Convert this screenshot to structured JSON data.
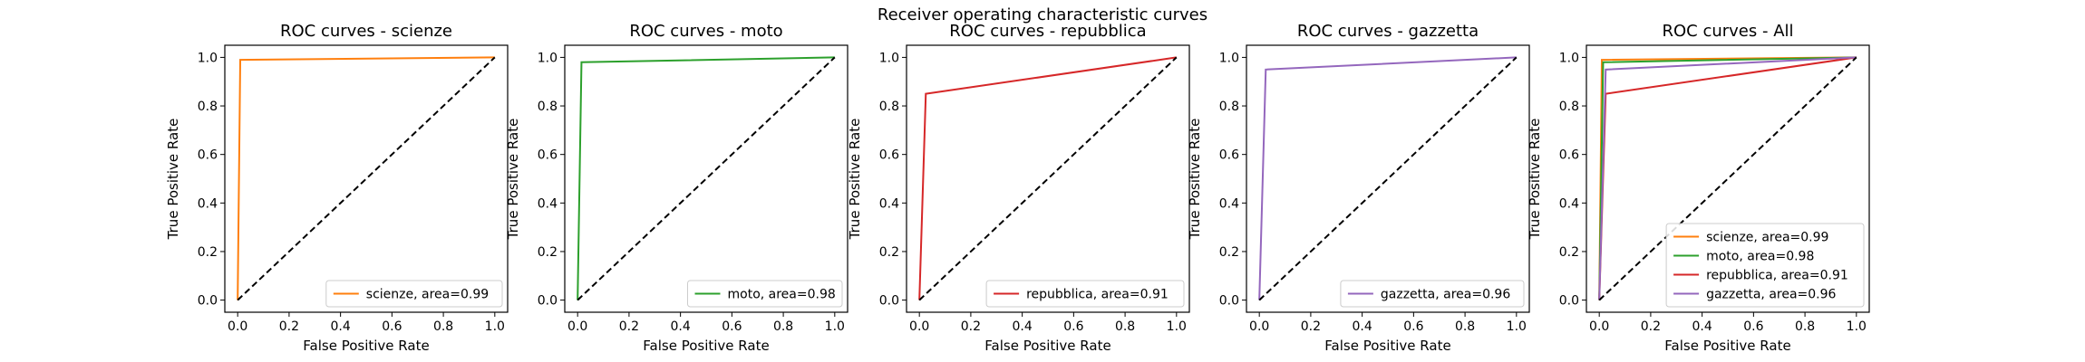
{
  "figure_title": "Receiver operating characteristic curves",
  "chart_data": [
    {
      "type": "line",
      "title": "ROC curves - scienze",
      "xlabel": "False Positive Rate",
      "ylabel": "True Positive Rate",
      "xlim": [
        0,
        1
      ],
      "ylim": [
        0,
        1
      ],
      "xticks": [
        "0.0",
        "0.2",
        "0.4",
        "0.6",
        "0.8",
        "1.0"
      ],
      "yticks": [
        "0.0",
        "0.2",
        "0.4",
        "0.6",
        "0.8",
        "1.0"
      ],
      "grid": false,
      "legend_position": "lower-right",
      "series": [
        {
          "name": "scienze, area=0.99",
          "color": "#ff7f0e",
          "x": [
            0,
            0.01,
            1
          ],
          "y": [
            0,
            0.99,
            1
          ]
        }
      ],
      "diagonal": {
        "x": [
          0,
          1
        ],
        "y": [
          0,
          1
        ],
        "color": "#000000",
        "style": "dashed"
      }
    },
    {
      "type": "line",
      "title": "ROC curves - moto",
      "xlabel": "False Positive Rate",
      "ylabel": "True Positive Rate",
      "xlim": [
        0,
        1
      ],
      "ylim": [
        0,
        1
      ],
      "xticks": [
        "0.0",
        "0.2",
        "0.4",
        "0.6",
        "0.8",
        "1.0"
      ],
      "yticks": [
        "0.0",
        "0.2",
        "0.4",
        "0.6",
        "0.8",
        "1.0"
      ],
      "grid": false,
      "legend_position": "lower-right",
      "series": [
        {
          "name": "moto, area=0.98",
          "color": "#2ca02c",
          "x": [
            0,
            0.015,
            1
          ],
          "y": [
            0,
            0.98,
            1
          ]
        }
      ],
      "diagonal": {
        "x": [
          0,
          1
        ],
        "y": [
          0,
          1
        ],
        "color": "#000000",
        "style": "dashed"
      }
    },
    {
      "type": "line",
      "title": "ROC curves - repubblica",
      "xlabel": "False Positive Rate",
      "ylabel": "True Positive Rate",
      "xlim": [
        0,
        1
      ],
      "ylim": [
        0,
        1
      ],
      "xticks": [
        "0.0",
        "0.2",
        "0.4",
        "0.6",
        "0.8",
        "1.0"
      ],
      "yticks": [
        "0.0",
        "0.2",
        "0.4",
        "0.6",
        "0.8",
        "1.0"
      ],
      "grid": false,
      "legend_position": "lower-right",
      "series": [
        {
          "name": "repubblica, area=0.91",
          "color": "#d62728",
          "x": [
            0,
            0.025,
            1
          ],
          "y": [
            0,
            0.85,
            1
          ]
        }
      ],
      "diagonal": {
        "x": [
          0,
          1
        ],
        "y": [
          0,
          1
        ],
        "color": "#000000",
        "style": "dashed"
      }
    },
    {
      "type": "line",
      "title": "ROC curves - gazzetta",
      "xlabel": "False Positive Rate",
      "ylabel": "True Positive Rate",
      "xlim": [
        0,
        1
      ],
      "ylim": [
        0,
        1
      ],
      "xticks": [
        "0.0",
        "0.2",
        "0.4",
        "0.6",
        "0.8",
        "1.0"
      ],
      "yticks": [
        "0.0",
        "0.2",
        "0.4",
        "0.6",
        "0.8",
        "1.0"
      ],
      "grid": false,
      "legend_position": "lower-right",
      "series": [
        {
          "name": "gazzetta, area=0.96",
          "color": "#9467bd",
          "x": [
            0,
            0.025,
            1
          ],
          "y": [
            0,
            0.95,
            1
          ]
        }
      ],
      "diagonal": {
        "x": [
          0,
          1
        ],
        "y": [
          0,
          1
        ],
        "color": "#000000",
        "style": "dashed"
      }
    },
    {
      "type": "line",
      "title": "ROC curves - All",
      "xlabel": "False Positive Rate",
      "ylabel": "True Positive Rate",
      "xlim": [
        0,
        1
      ],
      "ylim": [
        0,
        1
      ],
      "xticks": [
        "0.0",
        "0.2",
        "0.4",
        "0.6",
        "0.8",
        "1.0"
      ],
      "yticks": [
        "0.0",
        "0.2",
        "0.4",
        "0.6",
        "0.8",
        "1.0"
      ],
      "grid": false,
      "legend_position": "lower-right",
      "series": [
        {
          "name": "scienze, area=0.99",
          "color": "#ff7f0e",
          "x": [
            0,
            0.01,
            1
          ],
          "y": [
            0,
            0.99,
            1
          ]
        },
        {
          "name": "moto, area=0.98",
          "color": "#2ca02c",
          "x": [
            0,
            0.015,
            1
          ],
          "y": [
            0,
            0.98,
            1
          ]
        },
        {
          "name": "repubblica, area=0.91",
          "color": "#d62728",
          "x": [
            0,
            0.025,
            1
          ],
          "y": [
            0,
            0.85,
            1
          ]
        },
        {
          "name": "gazzetta, area=0.96",
          "color": "#9467bd",
          "x": [
            0,
            0.025,
            1
          ],
          "y": [
            0,
            0.95,
            1
          ]
        }
      ],
      "diagonal": {
        "x": [
          0,
          1
        ],
        "y": [
          0,
          1
        ],
        "color": "#000000",
        "style": "dashed"
      }
    }
  ]
}
